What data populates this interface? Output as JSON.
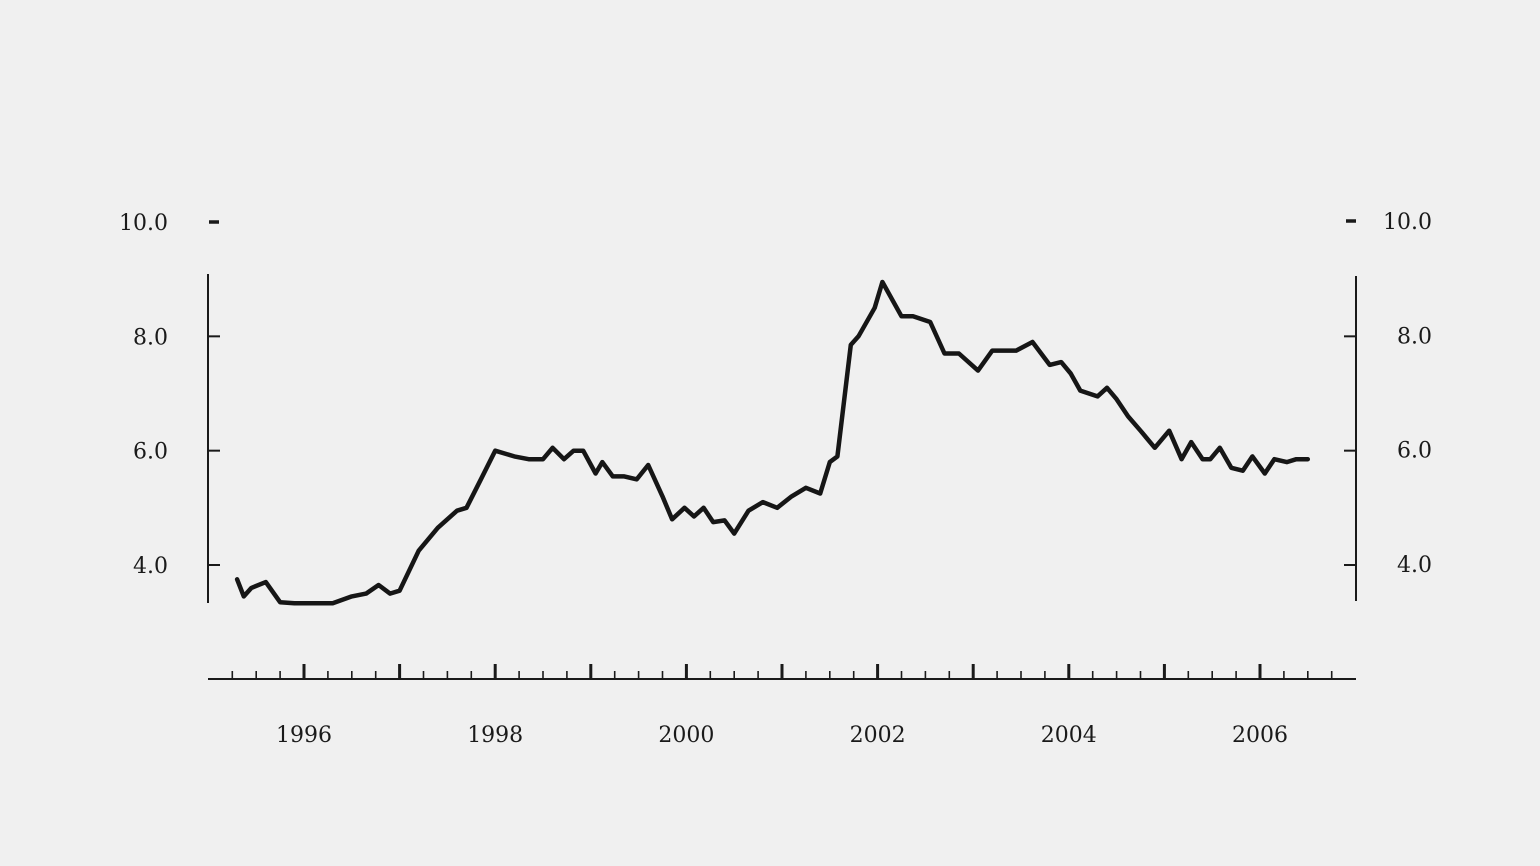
{
  "chart_data": {
    "type": "line",
    "title": "",
    "xlabel": "",
    "ylabel": "",
    "grid": false,
    "legend": "none",
    "ylim": [
      3.3,
      10.0
    ],
    "xlim": [
      1995,
      2007.2
    ],
    "y_ticks": [
      {
        "value": 4.0,
        "label": "4.0"
      },
      {
        "value": 6.0,
        "label": "6.0"
      },
      {
        "value": 8.0,
        "label": "8.0"
      },
      {
        "value": 10.0,
        "label": "10.0"
      }
    ],
    "x_labeled_ticks": [
      {
        "value": 1996,
        "label": "1996"
      },
      {
        "value": 1998,
        "label": "1998"
      },
      {
        "value": 2000,
        "label": "2000"
      },
      {
        "value": 2002,
        "label": "2002"
      },
      {
        "value": 2004,
        "label": "2004"
      },
      {
        "value": 2006,
        "label": "2006"
      }
    ],
    "x_major_ticks": [
      1996,
      1997,
      1998,
      1999,
      2000,
      2001,
      2002,
      2003,
      2004,
      2005,
      2006
    ],
    "x_minor_ticks_per_year": 4,
    "line_color": "#161616",
    "series": [
      {
        "x": [
          1995.3,
          1995.37,
          1995.45,
          1995.6,
          1995.75,
          1995.9,
          1996.1,
          1996.3,
          1996.5,
          1996.65,
          1996.78,
          1996.9,
          1997.0,
          1997.2,
          1997.4,
          1997.6,
          1997.7,
          1997.85,
          1998.0,
          1998.2,
          1998.35,
          1998.5,
          1998.6,
          1998.72,
          1998.82,
          1998.92,
          1999.05,
          1999.12,
          1999.23,
          1999.35,
          1999.48,
          1999.6,
          1999.75,
          1999.85,
          1999.98,
          2000.08,
          2000.18,
          2000.28,
          2000.4,
          2000.5,
          2000.65,
          2000.8,
          2000.95,
          2001.1,
          2001.25,
          2001.4,
          2001.5,
          2001.58,
          2001.72,
          2001.8,
          2001.97,
          2002.05,
          2002.25,
          2002.37,
          2002.55,
          2002.7,
          2002.85,
          2003.05,
          2003.2,
          2003.3,
          2003.45,
          2003.62,
          2003.8,
          2003.92,
          2004.02,
          2004.12,
          2004.3,
          2004.4,
          2004.5,
          2004.62,
          2004.75,
          2004.9,
          2005.05,
          2005.18,
          2005.28,
          2005.4,
          2005.48,
          2005.58,
          2005.7,
          2005.82,
          2005.92,
          2006.05,
          2006.15,
          2006.28,
          2006.38,
          2006.5
        ],
        "y": [
          3.75,
          3.45,
          3.6,
          3.7,
          3.35,
          3.33,
          3.33,
          3.33,
          3.45,
          3.5,
          3.65,
          3.5,
          3.55,
          4.25,
          4.65,
          4.95,
          5.0,
          5.5,
          6.0,
          5.9,
          5.85,
          5.85,
          6.05,
          5.85,
          6.0,
          6.0,
          5.6,
          5.8,
          5.55,
          5.55,
          5.5,
          5.75,
          5.2,
          4.8,
          5.0,
          4.85,
          5.0,
          4.75,
          4.78,
          4.55,
          4.95,
          5.1,
          5.0,
          5.2,
          5.35,
          5.25,
          5.8,
          5.9,
          7.85,
          8.0,
          8.5,
          8.95,
          8.35,
          8.35,
          8.25,
          7.7,
          7.7,
          7.4,
          7.75,
          7.75,
          7.75,
          7.9,
          7.5,
          7.55,
          7.35,
          7.05,
          6.95,
          7.1,
          6.9,
          6.6,
          6.35,
          6.05,
          6.35,
          5.85,
          6.15,
          5.85,
          5.85,
          6.05,
          5.7,
          5.65,
          5.9,
          5.6,
          5.85,
          5.8,
          5.85,
          5.85
        ]
      }
    ]
  }
}
